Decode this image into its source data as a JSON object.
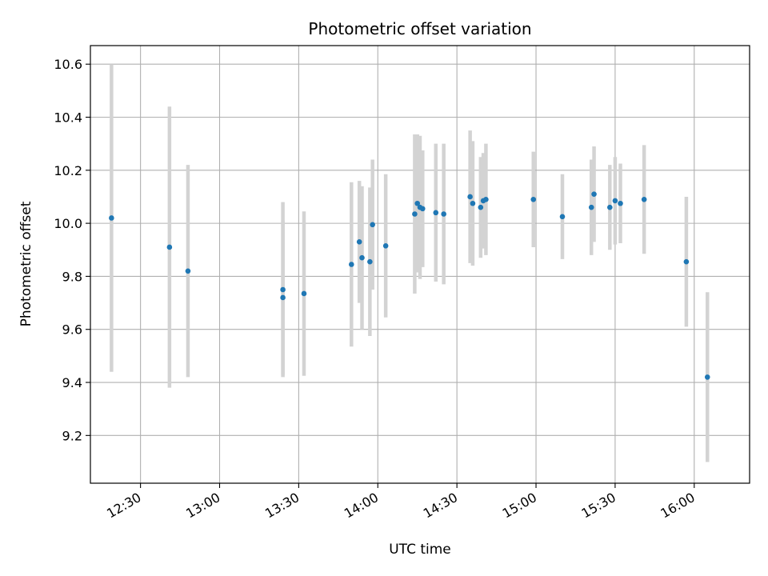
{
  "chart_data": {
    "type": "scatter",
    "title": "Photometric offset variation",
    "xlabel": "UTC time",
    "ylabel": "Photometric offset",
    "grid": true,
    "xlim": [
      "12:11",
      "16:21"
    ],
    "ylim": [
      9.02,
      10.67
    ],
    "x_ticks": [
      "12:30",
      "13:00",
      "13:30",
      "14:00",
      "14:30",
      "15:00",
      "15:30",
      "16:00"
    ],
    "y_ticks": [
      9.2,
      9.4,
      9.6,
      9.8,
      10.0,
      10.2,
      10.4,
      10.6
    ],
    "colors": {
      "point": "#1f77b4",
      "errorbar": "#d3d3d3",
      "grid": "#b0b0b0"
    },
    "series": [
      {
        "name": "offset",
        "points": [
          {
            "t": "12:19",
            "y": 10.02,
            "err": 0.58
          },
          {
            "t": "12:41",
            "y": 9.91,
            "err": 0.53
          },
          {
            "t": "12:48",
            "y": 9.82,
            "err": 0.4
          },
          {
            "t": "13:24",
            "y": 9.75,
            "err": 0.33
          },
          {
            "t": "13:24",
            "y": 9.72,
            "err": 0.29
          },
          {
            "t": "13:32",
            "y": 9.735,
            "err": 0.31
          },
          {
            "t": "13:50",
            "y": 9.845,
            "err": 0.31
          },
          {
            "t": "13:53",
            "y": 9.93,
            "err": 0.23
          },
          {
            "t": "13:54",
            "y": 9.87,
            "err": 0.27
          },
          {
            "t": "13:57",
            "y": 9.855,
            "err": 0.28
          },
          {
            "t": "13:58",
            "y": 9.995,
            "err": 0.245
          },
          {
            "t": "14:03",
            "y": 9.915,
            "err": 0.27
          },
          {
            "t": "14:14",
            "y": 10.035,
            "err": 0.3
          },
          {
            "t": "14:15",
            "y": 10.075,
            "err": 0.26
          },
          {
            "t": "14:16",
            "y": 10.06,
            "err": 0.27
          },
          {
            "t": "14:17",
            "y": 10.055,
            "err": 0.22
          },
          {
            "t": "14:22",
            "y": 10.04,
            "err": 0.26
          },
          {
            "t": "14:25",
            "y": 10.035,
            "err": 0.265
          },
          {
            "t": "14:35",
            "y": 10.1,
            "err": 0.25
          },
          {
            "t": "14:36",
            "y": 10.075,
            "err": 0.235
          },
          {
            "t": "14:39",
            "y": 10.06,
            "err": 0.19
          },
          {
            "t": "14:40",
            "y": 10.085,
            "err": 0.18
          },
          {
            "t": "14:41",
            "y": 10.09,
            "err": 0.21
          },
          {
            "t": "14:59",
            "y": 10.09,
            "err": 0.18
          },
          {
            "t": "15:10",
            "y": 10.025,
            "err": 0.16
          },
          {
            "t": "15:21",
            "y": 10.06,
            "err": 0.18
          },
          {
            "t": "15:22",
            "y": 10.11,
            "err": 0.18
          },
          {
            "t": "15:28",
            "y": 10.06,
            "err": 0.16
          },
          {
            "t": "15:30",
            "y": 10.085,
            "err": 0.165
          },
          {
            "t": "15:32",
            "y": 10.075,
            "err": 0.15
          },
          {
            "t": "15:41",
            "y": 10.09,
            "err": 0.205
          },
          {
            "t": "15:57",
            "y": 9.855,
            "err": 0.245
          },
          {
            "t": "16:05",
            "y": 9.42,
            "err": 0.32
          }
        ]
      }
    ]
  }
}
